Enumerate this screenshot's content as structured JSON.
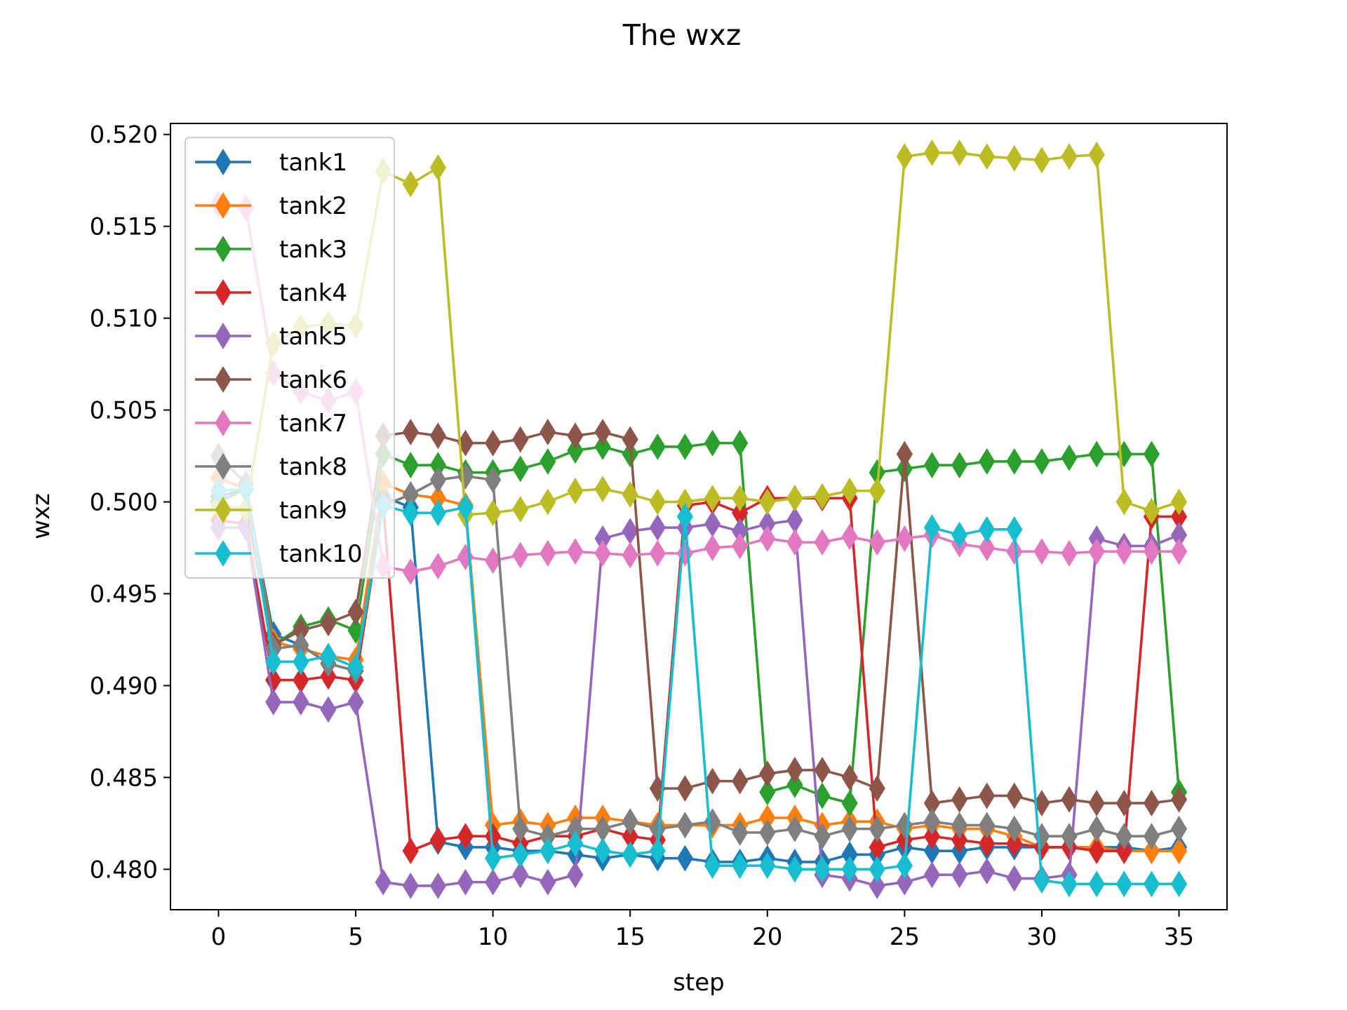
{
  "chart_data": {
    "type": "line",
    "title": "The wxz",
    "xlabel": "step",
    "ylabel": "wxz",
    "xlim": [
      -1.75,
      36.75
    ],
    "ylim": [
      0.4778,
      0.5206
    ],
    "xticks": [
      0,
      5,
      10,
      15,
      20,
      25,
      30,
      35
    ],
    "xtick_labels": [
      "0",
      "5",
      "10",
      "15",
      "20",
      "25",
      "30",
      "35"
    ],
    "yticks": [
      0.48,
      0.485,
      0.49,
      0.495,
      0.5,
      0.505,
      0.51,
      0.515,
      0.52
    ],
    "ytick_labels": [
      "0.480",
      "0.485",
      "0.490",
      "0.495",
      "0.500",
      "0.505",
      "0.510",
      "0.515",
      "0.520"
    ],
    "grid": false,
    "legend_position": "upper-left",
    "marker": "thin-diamond",
    "x": [
      0,
      1,
      2,
      3,
      4,
      5,
      6,
      7,
      8,
      9,
      10,
      11,
      12,
      13,
      14,
      15,
      16,
      17,
      18,
      19,
      20,
      21,
      22,
      23,
      24,
      25,
      26,
      27,
      28,
      29,
      30,
      31,
      32,
      33,
      34,
      35
    ],
    "series": [
      {
        "name": "tank1",
        "color": "#1f77b4",
        "values": [
          0.5003,
          0.5007,
          0.4928,
          0.4922,
          0.4912,
          0.4908,
          0.5003,
          0.4997,
          0.4815,
          0.4812,
          0.4812,
          0.481,
          0.481,
          0.4808,
          0.4806,
          0.4808,
          0.4806,
          0.4806,
          0.4804,
          0.4804,
          0.4806,
          0.4804,
          0.4804,
          0.4808,
          0.4808,
          0.4812,
          0.481,
          0.481,
          0.4812,
          0.4812,
          0.4812,
          0.4812,
          0.4812,
          0.4812,
          0.481,
          0.4812
        ]
      },
      {
        "name": "tank2",
        "color": "#ff7f0e",
        "values": [
          0.5013,
          0.5007,
          0.4924,
          0.492,
          0.4916,
          0.4914,
          0.501,
          0.5004,
          0.5002,
          0.4998,
          0.4824,
          0.4826,
          0.4824,
          0.4828,
          0.4828,
          0.4826,
          0.4824,
          0.4824,
          0.4824,
          0.4824,
          0.4828,
          0.4828,
          0.4824,
          0.4826,
          0.4826,
          0.4822,
          0.4824,
          0.4822,
          0.4822,
          0.4818,
          0.4812,
          0.4812,
          0.4812,
          0.481,
          0.481,
          0.481
        ]
      },
      {
        "name": "tank3",
        "color": "#2ca02c",
        "values": [
          0.5,
          0.5007,
          0.4922,
          0.4932,
          0.4936,
          0.493,
          0.5026,
          0.502,
          0.502,
          0.5016,
          0.5016,
          0.5018,
          0.5022,
          0.5028,
          0.503,
          0.5026,
          0.503,
          0.503,
          0.5032,
          0.5032,
          0.4842,
          0.4846,
          0.484,
          0.4836,
          0.5016,
          0.5018,
          0.502,
          0.502,
          0.5022,
          0.5022,
          0.5022,
          0.5024,
          0.5026,
          0.5026,
          0.5026,
          0.4842
        ]
      },
      {
        "name": "tank4",
        "color": "#d62728",
        "values": [
          0.499,
          0.4988,
          0.4903,
          0.4903,
          0.4905,
          0.4903,
          0.4999,
          0.481,
          0.4816,
          0.4818,
          0.4818,
          0.4814,
          0.4818,
          0.4818,
          0.4822,
          0.4818,
          0.4816,
          0.4998,
          0.5,
          0.4994,
          0.5002,
          0.5002,
          0.5002,
          0.5002,
          0.4812,
          0.4816,
          0.4818,
          0.4816,
          0.4814,
          0.4814,
          0.4812,
          0.4812,
          0.481,
          0.481,
          0.4992,
          0.4992
        ]
      },
      {
        "name": "tank5",
        "color": "#9467bd",
        "values": [
          0.4986,
          0.4986,
          0.4891,
          0.4891,
          0.4887,
          0.4891,
          0.4793,
          0.4791,
          0.4791,
          0.4793,
          0.4793,
          0.4797,
          0.4793,
          0.4797,
          0.498,
          0.4984,
          0.4986,
          0.4986,
          0.4988,
          0.4984,
          0.4988,
          0.499,
          0.4797,
          0.4795,
          0.4791,
          0.4793,
          0.4797,
          0.4797,
          0.4799,
          0.4795,
          0.4795,
          0.4797,
          0.498,
          0.4976,
          0.4976,
          0.4982
        ]
      },
      {
        "name": "tank6",
        "color": "#8c564b",
        "values": [
          0.4998,
          0.4996,
          0.4922,
          0.493,
          0.4934,
          0.494,
          0.5036,
          0.5038,
          0.5036,
          0.5032,
          0.5032,
          0.5034,
          0.5038,
          0.5036,
          0.5038,
          0.5034,
          0.4844,
          0.4844,
          0.4848,
          0.4848,
          0.4852,
          0.4854,
          0.4854,
          0.485,
          0.4844,
          0.5026,
          0.4836,
          0.4838,
          0.484,
          0.484,
          0.4836,
          0.4838,
          0.4836,
          0.4836,
          0.4836,
          0.4838
        ]
      },
      {
        "name": "tank7",
        "color": "#e377c2",
        "values": [
          0.5162,
          0.516,
          0.507,
          0.506,
          0.5055,
          0.506,
          0.4965,
          0.4962,
          0.4965,
          0.497,
          0.4968,
          0.4971,
          0.4972,
          0.4973,
          0.4972,
          0.4971,
          0.4972,
          0.4972,
          0.4975,
          0.4976,
          0.498,
          0.4978,
          0.4978,
          0.4981,
          0.4978,
          0.498,
          0.4982,
          0.4977,
          0.4975,
          0.4973,
          0.4973,
          0.4972,
          0.4973,
          0.4973,
          0.4973,
          0.4973
        ]
      },
      {
        "name": "tank8",
        "color": "#7f7f7f",
        "values": [
          0.5025,
          0.501,
          0.492,
          0.4922,
          0.4912,
          0.4908,
          0.4998,
          0.5004,
          0.5012,
          0.5014,
          0.5012,
          0.4822,
          0.4818,
          0.4822,
          0.4822,
          0.4826,
          0.4822,
          0.4824,
          0.4826,
          0.482,
          0.482,
          0.4822,
          0.4818,
          0.4822,
          0.4822,
          0.4824,
          0.4826,
          0.4824,
          0.4824,
          0.4822,
          0.4818,
          0.4818,
          0.4822,
          0.4818,
          0.4818,
          0.4822
        ]
      },
      {
        "name": "tank9",
        "color": "#bcbd22",
        "values": [
          0.4998,
          0.4996,
          0.5086,
          0.5095,
          0.5097,
          0.5096,
          0.518,
          0.5173,
          0.5182,
          0.4993,
          0.4994,
          0.4996,
          0.5,
          0.5006,
          0.5007,
          0.5004,
          0.5,
          0.5,
          0.5002,
          0.5002,
          0.5,
          0.5002,
          0.5003,
          0.5006,
          0.5006,
          0.5188,
          0.519,
          0.519,
          0.5188,
          0.5187,
          0.5186,
          0.5188,
          0.5189,
          0.5,
          0.4995,
          0.5
        ]
      },
      {
        "name": "tank10",
        "color": "#17becf",
        "values": [
          0.5006,
          0.5007,
          0.4913,
          0.4913,
          0.4916,
          0.491,
          0.4998,
          0.4994,
          0.4994,
          0.4997,
          0.4806,
          0.4808,
          0.481,
          0.4814,
          0.481,
          0.4808,
          0.481,
          0.4992,
          0.4802,
          0.4802,
          0.4802,
          0.48,
          0.48,
          0.48,
          0.48,
          0.4802,
          0.4986,
          0.4982,
          0.4985,
          0.4985,
          0.4794,
          0.4792,
          0.4792,
          0.4792,
          0.4792,
          0.4792
        ]
      }
    ]
  }
}
